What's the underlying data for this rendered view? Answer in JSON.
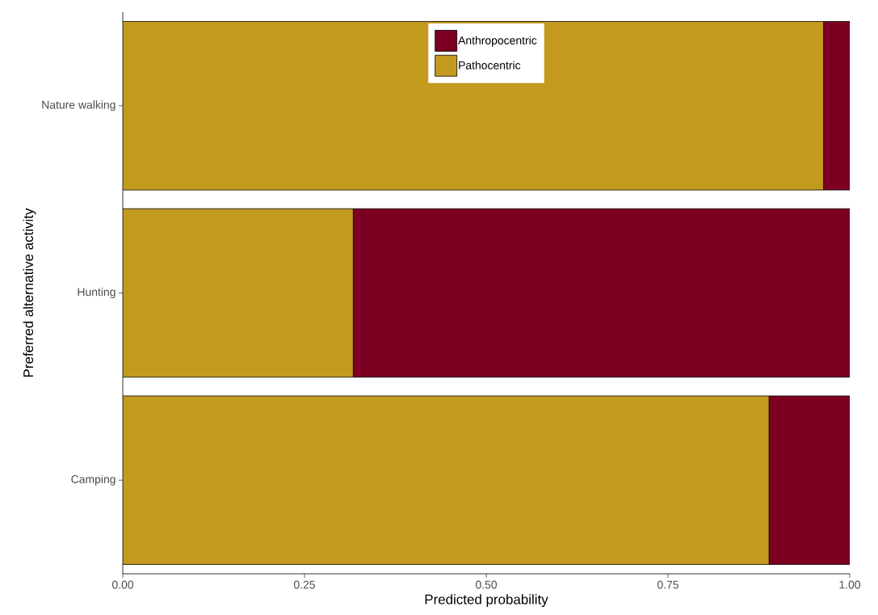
{
  "chart_data": {
    "type": "bar",
    "orientation": "horizontal",
    "stacked": true,
    "xlabel": "Predicted probability",
    "ylabel": "Preferred alternative activity",
    "categories": [
      "Nature walking",
      "Hunting",
      "Camping"
    ],
    "series": [
      {
        "name": "Pathocentric",
        "color": "#c49a1e",
        "values": [
          0.964,
          0.317,
          0.889
        ]
      },
      {
        "name": "Anthropocentric",
        "color": "#7d0022",
        "values": [
          0.036,
          0.683,
          0.111
        ]
      }
    ],
    "xlim": [
      0,
      1
    ],
    "xticks": [
      {
        "value": 0,
        "label": "0.00"
      },
      {
        "value": 0.25,
        "label": "0.25"
      },
      {
        "value": 0.5,
        "label": "0.50"
      },
      {
        "value": 0.75,
        "label": "0.75"
      },
      {
        "value": 1,
        "label": "1.00"
      }
    ],
    "legend": "top"
  }
}
